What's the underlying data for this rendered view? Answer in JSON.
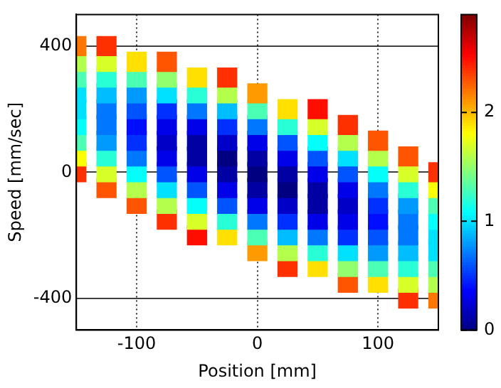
{
  "chart_data": {
    "type": "scatter",
    "xlabel": "Position [mm]",
    "ylabel": "Speed [mm/sec]",
    "xlim": [
      -150,
      150
    ],
    "xticks": [
      -100,
      0,
      100
    ],
    "ylim": [
      -500,
      500
    ],
    "yticks": [
      -400,
      0,
      400
    ],
    "grid": true,
    "marker": "square",
    "clim": [
      0,
      2.9
    ],
    "cticks": [
      0,
      1,
      2
    ],
    "x": [
      -150,
      -150,
      -150,
      -150,
      -150,
      -150,
      -150,
      -150,
      -150,
      -125,
      -125,
      -125,
      -125,
      -125,
      -125,
      -125,
      -125,
      -125,
      -125,
      -100,
      -100,
      -100,
      -100,
      -100,
      -100,
      -100,
      -100,
      -100,
      -100,
      -75,
      -75,
      -75,
      -75,
      -75,
      -75,
      -75,
      -75,
      -75,
      -75,
      -75,
      -50,
      -50,
      -50,
      -50,
      -50,
      -50,
      -50,
      -50,
      -50,
      -50,
      -50,
      -25,
      -25,
      -25,
      -25,
      -25,
      -25,
      -25,
      -25,
      -25,
      -25,
      -25,
      0,
      0,
      0,
      0,
      0,
      0,
      0,
      0,
      0,
      0,
      0,
      25,
      25,
      25,
      25,
      25,
      25,
      25,
      25,
      25,
      25,
      25,
      50,
      50,
      50,
      50,
      50,
      50,
      50,
      50,
      50,
      50,
      50,
      75,
      75,
      75,
      75,
      75,
      75,
      75,
      75,
      75,
      75,
      75,
      100,
      100,
      100,
      100,
      100,
      100,
      100,
      100,
      100,
      100,
      125,
      125,
      125,
      125,
      125,
      125,
      125,
      125,
      125,
      125,
      150,
      150,
      150,
      150,
      150,
      150,
      150,
      150,
      150
    ],
    "values": [
      0,
      50,
      100,
      150,
      200,
      250,
      300,
      350,
      400,
      -50,
      0,
      50,
      100,
      150,
      200,
      250,
      300,
      350,
      400,
      -100,
      -50,
      0,
      50,
      100,
      150,
      200,
      250,
      300,
      350,
      -150,
      -100,
      -50,
      0,
      50,
      100,
      150,
      200,
      250,
      300,
      350,
      -200,
      -150,
      -100,
      -50,
      0,
      50,
      100,
      150,
      200,
      250,
      300,
      -200,
      -150,
      -100,
      -50,
      0,
      50,
      100,
      150,
      200,
      250,
      300,
      -250,
      -200,
      -150,
      -100,
      -50,
      0,
      50,
      100,
      150,
      200,
      250,
      -300,
      -250,
      -200,
      -150,
      -100,
      -50,
      0,
      50,
      100,
      150,
      200,
      -300,
      -250,
      -200,
      -150,
      -100,
      -50,
      0,
      50,
      100,
      150,
      200,
      -350,
      -300,
      -250,
      -200,
      -150,
      -100,
      -50,
      0,
      50,
      100,
      150,
      -350,
      -300,
      -250,
      -200,
      -150,
      -100,
      -50,
      0,
      50,
      100,
      -400,
      -350,
      -300,
      -250,
      -200,
      -150,
      -100,
      -50,
      0,
      50,
      -400,
      -350,
      -300,
      -250,
      -200,
      -150,
      -100,
      -50,
      0
    ],
    "cvalues": [
      2.4,
      1.8,
      1.3,
      1.1,
      1.0,
      1.0,
      1.3,
      1.6,
      2.2,
      2.3,
      1.7,
      1.2,
      0.8,
      0.7,
      0.7,
      0.9,
      1.2,
      1.7,
      2.4,
      2.3,
      1.6,
      1.1,
      0.7,
      0.5,
      0.4,
      0.6,
      0.8,
      1.3,
      1.9,
      2.4,
      1.6,
      1.0,
      0.6,
      0.3,
      0.2,
      0.3,
      0.5,
      1.0,
      1.5,
      2.3,
      2.5,
      1.7,
      1.1,
      0.6,
      0.3,
      0.1,
      0.1,
      0.3,
      0.7,
      1.2,
      1.9,
      1.9,
      1.2,
      0.6,
      0.3,
      0.1,
      0.0,
      0.2,
      0.5,
      0.9,
      1.6,
      2.4,
      2.1,
      1.3,
      0.7,
      0.3,
      0.1,
      0.0,
      0.1,
      0.3,
      0.7,
      1.3,
      2.1,
      2.4,
      1.6,
      0.9,
      0.5,
      0.2,
      0.0,
      0.1,
      0.3,
      0.6,
      1.2,
      1.9,
      1.9,
      1.2,
      0.7,
      0.3,
      0.1,
      0.1,
      0.3,
      0.6,
      1.1,
      1.7,
      2.5,
      2.3,
      1.5,
      1.0,
      0.5,
      0.3,
      0.2,
      0.3,
      0.6,
      1.0,
      1.6,
      2.4,
      1.9,
      1.3,
      0.8,
      0.6,
      0.4,
      0.5,
      0.7,
      1.1,
      1.6,
      2.3,
      2.4,
      1.7,
      1.2,
      0.9,
      0.7,
      0.7,
      0.8,
      1.2,
      1.7,
      2.3,
      2.2,
      1.6,
      1.3,
      1.0,
      1.0,
      1.1,
      1.3,
      1.8,
      2.4
    ]
  }
}
